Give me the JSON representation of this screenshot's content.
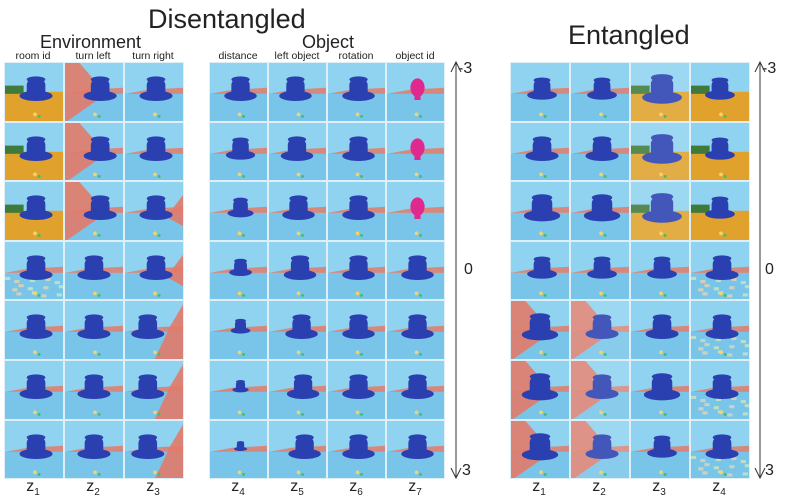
{
  "headings": {
    "disentangled": "Disentangled",
    "environment": "Environment",
    "object": "Object",
    "entangled": "Entangled"
  },
  "columns": {
    "environment": [
      "room id",
      "turn left",
      "turn right"
    ],
    "object": [
      "distance",
      "left object",
      "rotation",
      "object id"
    ]
  },
  "latents": {
    "disentangled": [
      {
        "base": "z",
        "sub": "1"
      },
      {
        "base": "z",
        "sub": "2"
      },
      {
        "base": "z",
        "sub": "3"
      },
      {
        "base": "z",
        "sub": "4"
      },
      {
        "base": "z",
        "sub": "5"
      },
      {
        "base": "z",
        "sub": "6"
      },
      {
        "base": "z",
        "sub": "7"
      }
    ],
    "entangled": [
      {
        "base": "z",
        "sub": "1"
      },
      {
        "base": "z",
        "sub": "2"
      },
      {
        "base": "z",
        "sub": "3"
      },
      {
        "base": "z",
        "sub": "4"
      }
    ]
  },
  "scale": {
    "top": "-3",
    "middle": "0",
    "bottom": "3"
  },
  "grid": {
    "rows": 7
  },
  "colors": {
    "sky": "#8fd3f0",
    "floor": "#79c4e9",
    "wall_red": "#e27b6a",
    "object_blue": "#2a3fb0",
    "object_pink": "#e0298f",
    "room_orange": "#e0a22c",
    "room_green": "#3f7a3a"
  }
}
